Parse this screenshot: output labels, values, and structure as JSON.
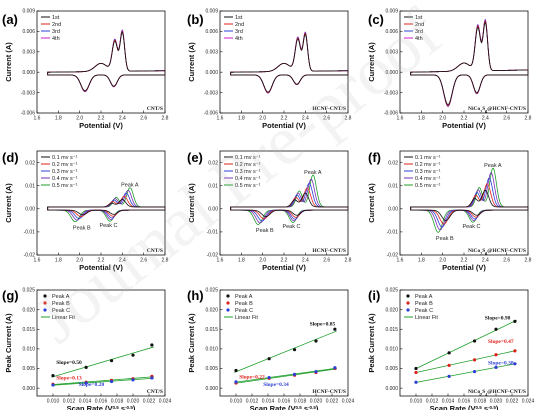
{
  "watermark": "Journal Pre-proof",
  "colors": {
    "black": "#111111",
    "red": "#e0201b",
    "blue": "#2d3fd6",
    "magenta": "#d21dc9",
    "purple": "#7a2fb8",
    "green": "#1f9e2a"
  },
  "units": {
    "current_ylabel": "Current (A)",
    "potential_xlabel": "Potential (V)",
    "peak_ylabel": "Peak Current (A)",
    "scan_xlabel": "Scan Rate (V^0.5 s^-0.5)"
  },
  "chart_data": [
    {
      "id": "a",
      "label": "(a)",
      "type": "line",
      "kind": "cycles",
      "sample": "CNT/S",
      "xlim": [
        1.6,
        2.8
      ],
      "ylim": [
        -0.006,
        0.009
      ],
      "xticks": [
        "1.6",
        "1.8",
        "2.0",
        "2.2",
        "2.4",
        "2.6",
        "2.8"
      ],
      "yticks": [
        "-0.006",
        "-0.003",
        "0.000",
        "0.003",
        "0.006",
        "0.009"
      ],
      "legend": [
        "1st",
        "2nd",
        "3rd",
        "4th"
      ],
      "params": {
        "ar": 0.0045,
        "br": 0.0058,
        "cr": -0.0024,
        "dr": -0.0017,
        "tail": 0.0002
      }
    },
    {
      "id": "b",
      "label": "(b)",
      "type": "line",
      "kind": "cycles",
      "sample": "HCNF-CNT/S",
      "xlim": [
        1.6,
        2.8
      ],
      "ylim": [
        -0.006,
        0.009
      ],
      "xticks": [
        "1.6",
        "1.8",
        "2.0",
        "2.2",
        "2.4",
        "2.6",
        "2.8"
      ],
      "yticks": [
        "-0.006",
        "-0.003",
        "0.000",
        "0.003",
        "0.006",
        "0.009"
      ],
      "legend": [
        "1st",
        "2nd",
        "3rd",
        "4th"
      ],
      "params": {
        "ar": 0.0048,
        "br": 0.0055,
        "cr": -0.0026,
        "dr": -0.0014,
        "tail": 0.0002
      }
    },
    {
      "id": "c",
      "label": "(c)",
      "type": "line",
      "kind": "cycles",
      "sample": "NiCo2S4@HCNF-CNT/S",
      "xlim": [
        1.6,
        2.8
      ],
      "ylim": [
        -0.006,
        0.009
      ],
      "xticks": [
        "1.6",
        "1.8",
        "2.0",
        "2.2",
        "2.4",
        "2.6",
        "2.8"
      ],
      "yticks": [
        "-0.006",
        "-0.003",
        "0.000",
        "0.003",
        "0.006",
        "0.009"
      ],
      "legend": [
        "1st",
        "2nd",
        "3rd",
        "4th"
      ],
      "params": {
        "ar": 0.0065,
        "br": 0.0072,
        "cr": -0.0045,
        "dr": -0.0027,
        "tail": 0.0003
      }
    },
    {
      "id": "d",
      "label": "(d)",
      "type": "line",
      "kind": "rates",
      "sample": "CNT/S",
      "xlim": [
        1.6,
        2.8
      ],
      "ylim": [
        -0.02,
        0.025
      ],
      "xticks": [
        "1.6",
        "1.8",
        "2.0",
        "2.2",
        "2.4",
        "2.6",
        "2.8"
      ],
      "yticks": [
        "-0.02",
        "-0.01",
        "0.00",
        "0.01",
        "0.02"
      ],
      "legend": [
        "0.1 mv s⁻¹",
        "0.2 mv s⁻¹",
        "0.3 mv s⁻¹",
        "0.4 mv s⁻¹",
        "0.5 mv s⁻¹"
      ],
      "peaks": [
        "Peak A",
        "Peak B",
        "Peak C"
      ],
      "params": {
        "A": [
          0.0032,
          0.0046,
          0.006,
          0.0072,
          0.0083
        ],
        "B": [
          -0.002,
          -0.0028,
          -0.0036,
          -0.0043,
          -0.005
        ],
        "C": [
          -0.0018,
          -0.0026,
          -0.0034,
          -0.0041,
          -0.0048
        ]
      }
    },
    {
      "id": "e",
      "label": "(e)",
      "type": "line",
      "kind": "rates",
      "sample": "HCNF-CNT/S",
      "xlim": [
        1.6,
        2.8
      ],
      "ylim": [
        -0.02,
        0.025
      ],
      "xticks": [
        "1.6",
        "1.8",
        "2.0",
        "2.2",
        "2.4",
        "2.6",
        "2.8"
      ],
      "yticks": [
        "-0.02",
        "-0.01",
        "0.00",
        "0.01",
        "0.02"
      ],
      "legend": [
        "0.1 mv s⁻¹",
        "0.2 mv s⁻¹",
        "0.3 mv s⁻¹",
        "0.4 mv s⁻¹",
        "0.5 mv s⁻¹"
      ],
      "peaks": [
        "Peak A",
        "Peak B",
        "Peak C"
      ],
      "params": {
        "A": [
          0.006,
          0.0082,
          0.0102,
          0.012,
          0.0138
        ],
        "B": [
          -0.0028,
          -0.0038,
          -0.0047,
          -0.0055,
          -0.0062
        ],
        "C": [
          -0.0022,
          -0.0031,
          -0.0039,
          -0.0046,
          -0.0053
        ]
      }
    },
    {
      "id": "f",
      "label": "(f)",
      "type": "line",
      "kind": "rates",
      "sample": "NiCo2S4@HCNF-CNT/S",
      "xlim": [
        1.6,
        2.8
      ],
      "ylim": [
        -0.02,
        0.025
      ],
      "xticks": [
        "1.6",
        "1.8",
        "2.0",
        "2.2",
        "2.4",
        "2.6",
        "2.8"
      ],
      "yticks": [
        "-0.02",
        "-0.01",
        "0.00",
        "0.01",
        "0.02"
      ],
      "legend": [
        "0.1 mv s⁻¹",
        "0.2 mv s⁻¹",
        "0.3 mv s⁻¹",
        "0.4 mv s⁻¹",
        "0.5 mv s⁻¹"
      ],
      "peaks": [
        "Peak A",
        "Peak B",
        "Peak C"
      ],
      "params": {
        "A": [
          0.0072,
          0.01,
          0.0125,
          0.0148,
          0.0168
        ],
        "B": [
          -0.0045,
          -0.006,
          -0.0073,
          -0.0085,
          -0.0096
        ],
        "C": [
          -0.0022,
          -0.003,
          -0.0038,
          -0.0045,
          -0.0052
        ]
      }
    },
    {
      "id": "g",
      "label": "(g)",
      "type": "scatter",
      "kind": "fit",
      "sample": "CNT/S",
      "xlim": [
        0.008,
        0.024
      ],
      "ylim": [
        -0.002,
        0.025
      ],
      "xticks": [
        "0.010",
        "0.012",
        "0.014",
        "0.016",
        "0.018",
        "0.020",
        "0.022",
        "0.024"
      ],
      "yticks": [
        "0.000",
        "0.005",
        "0.010",
        "0.015",
        "0.020",
        "0.025"
      ],
      "legend": [
        "Peak A",
        "Peak B",
        "Peak C",
        "Linear Fit"
      ],
      "x": [
        0.01,
        0.01414,
        0.01732,
        0.02,
        0.02236
      ],
      "series": [
        {
          "name": "Peak A",
          "values": [
            0.0032,
            0.0053,
            0.007,
            0.0084,
            0.011
          ]
        },
        {
          "name": "Peak B",
          "values": [
            0.001,
            0.0015,
            0.002,
            0.0024,
            0.003
          ]
        },
        {
          "name": "Peak C",
          "values": [
            0.0008,
            0.0013,
            0.0017,
            0.0021,
            0.0026
          ]
        }
      ],
      "slopes": [
        {
          "text": "Slope=0.50",
          "color": "black",
          "x": 0.0104,
          "y": 0.0062
        },
        {
          "text": "Slope=0.13",
          "color": "red",
          "x": 0.0104,
          "y": 0.0022
        },
        {
          "text": "Slope=0.20",
          "color": "blue",
          "x": 0.0132,
          "y": 0.0006
        }
      ]
    },
    {
      "id": "h",
      "label": "(h)",
      "type": "scatter",
      "kind": "fit",
      "sample": "HCNF-CNT/S",
      "xlim": [
        0.008,
        0.024
      ],
      "ylim": [
        -0.002,
        0.025
      ],
      "xticks": [
        "0.010",
        "0.012",
        "0.014",
        "0.016",
        "0.018",
        "0.020",
        "0.022",
        "0.024"
      ],
      "yticks": [
        "0.000",
        "0.005",
        "0.010",
        "0.015",
        "0.020",
        "0.025"
      ],
      "legend": [
        "Peak A",
        "Peak B",
        "Peak C",
        "Linear Fit"
      ],
      "x": [
        0.01,
        0.01414,
        0.01732,
        0.02,
        0.02236
      ],
      "series": [
        {
          "name": "Peak A",
          "values": [
            0.0045,
            0.0075,
            0.0098,
            0.012,
            0.015
          ]
        },
        {
          "name": "Peak B",
          "values": [
            0.0013,
            0.0025,
            0.0033,
            0.004,
            0.005
          ]
        },
        {
          "name": "Peak C",
          "values": [
            0.0016,
            0.0027,
            0.0035,
            0.0042,
            0.0052
          ]
        }
      ],
      "slopes": [
        {
          "text": "Slope=0.85",
          "color": "black",
          "x": 0.0192,
          "y": 0.016
        },
        {
          "text": "Slope=0.22",
          "color": "red",
          "x": 0.0104,
          "y": 0.0024
        },
        {
          "text": "Slope=0.34",
          "color": "blue",
          "x": 0.0134,
          "y": 0.0006
        }
      ]
    },
    {
      "id": "i",
      "label": "(i)",
      "type": "scatter",
      "kind": "fit",
      "sample": "NiCo2S4@HCNF-CNT/S",
      "xlim": [
        0.008,
        0.024
      ],
      "ylim": [
        -0.002,
        0.025
      ],
      "xticks": [
        "0.010",
        "0.012",
        "0.014",
        "0.016",
        "0.018",
        "0.020",
        "0.022",
        "0.024"
      ],
      "yticks": [
        "0.000",
        "0.005",
        "0.010",
        "0.015",
        "0.020",
        "0.025"
      ],
      "legend": [
        "Peak A",
        "Peak B",
        "Peak C",
        "Linear Fit"
      ],
      "x": [
        0.01,
        0.01414,
        0.01732,
        0.02,
        0.02236
      ],
      "series": [
        {
          "name": "Peak A",
          "values": [
            0.005,
            0.009,
            0.012,
            0.015,
            0.017
          ]
        },
        {
          "name": "Peak B",
          "values": [
            0.004,
            0.0058,
            0.0072,
            0.0085,
            0.0095
          ]
        },
        {
          "name": "Peak C",
          "values": [
            0.0015,
            0.003,
            0.0042,
            0.0053,
            0.0062
          ]
        }
      ],
      "slopes": [
        {
          "text": "Slope=0.98",
          "color": "black",
          "x": 0.0186,
          "y": 0.0175
        },
        {
          "text": "Slope=0.47",
          "color": "red",
          "x": 0.019,
          "y": 0.0115
        },
        {
          "text": "Slope=0.38",
          "color": "blue",
          "x": 0.019,
          "y": 0.006
        }
      ]
    }
  ]
}
